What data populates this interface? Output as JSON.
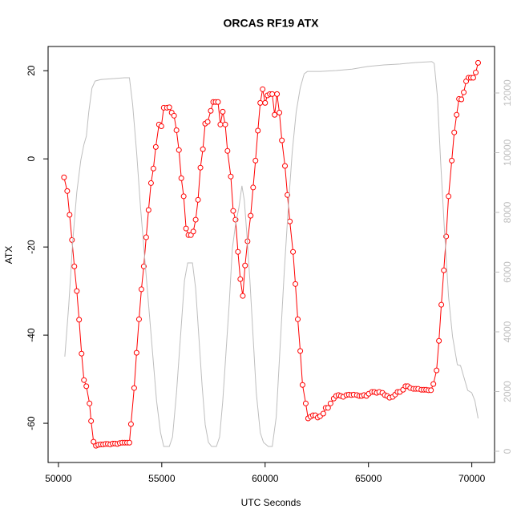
{
  "chart_data": {
    "type": "line",
    "title": "ORCAS RF19 ATX",
    "xlabel": "UTC Seconds",
    "ylabel": "ATX",
    "xlim": [
      49500,
      71100
    ],
    "ylim": [
      -68.9,
      25.5
    ],
    "y2lim": [
      -376,
      13557
    ],
    "xticks": [
      50000,
      55000,
      60000,
      65000,
      70000
    ],
    "yticks": [
      -60,
      -40,
      -20,
      0,
      20
    ],
    "y2ticks": [
      0,
      2000,
      4000,
      6000,
      8000,
      10000,
      12000
    ],
    "y2_color": "#bebebe",
    "series": [
      {
        "color": "#ff0000",
        "markers": true,
        "x": [
          50270,
          50425,
          50540,
          50655,
          50770,
          50890,
          51000,
          51120,
          51235,
          51350,
          51505,
          51580,
          51700,
          51815,
          51930,
          52045,
          52160,
          52275,
          52390,
          52510,
          52625,
          52740,
          52855,
          52970,
          53090,
          53205,
          53320,
          53435,
          53510,
          53665,
          53780,
          53900,
          54015,
          54130,
          54245,
          54360,
          54480,
          54595,
          54710,
          54865,
          54980,
          55095,
          55250,
          55365,
          55480,
          55595,
          55710,
          55830,
          55945,
          56060,
          56175,
          56290,
          56410,
          56525,
          56640,
          56755,
          56870,
          56990,
          57100,
          57220,
          57370,
          57490,
          57605,
          57720,
          57835,
          57950,
          58070,
          58180,
          58340,
          58455,
          58570,
          58685,
          58800,
          58920,
          59030,
          59150,
          59300,
          59420,
          59535,
          59650,
          59765,
          59880,
          60000,
          60115,
          60230,
          60345,
          60460,
          60575,
          60690,
          60810,
          60960,
          61080,
          61195,
          61350,
          61465,
          61580,
          61700,
          61810,
          61965,
          62080,
          62200,
          62315,
          62430,
          62545,
          62660,
          62815,
          62930,
          63045,
          63165,
          63320,
          63435,
          63550,
          63665,
          63780,
          63935,
          64050,
          64170,
          64285,
          64440,
          64555,
          64670,
          64785,
          64900,
          65015,
          65170,
          65285,
          65400,
          65520,
          65675,
          65790,
          65905,
          66020,
          66175,
          66290,
          66405,
          66520,
          66675,
          66790,
          66905,
          67020,
          67175,
          67290,
          67405,
          67560,
          67675,
          67790,
          67905,
          68025,
          68140,
          68295,
          68410,
          68525,
          68645,
          68760,
          68875,
          69030,
          69150,
          69265,
          69380,
          69495,
          69610,
          69725,
          69840,
          69955,
          70070,
          70190,
          70305
        ],
        "values": [
          -4.2,
          -7.3,
          -12.7,
          -18.4,
          -24.4,
          -30,
          -36.5,
          -44.2,
          -50.2,
          -51.6,
          -55.5,
          -59.5,
          -64.2,
          -65.1,
          -64.9,
          -64.8,
          -64.8,
          -64.7,
          -64.7,
          -64.8,
          -64.6,
          -64.6,
          -64.7,
          -64.5,
          -64.4,
          -64.4,
          -64.4,
          -64.4,
          -60.2,
          -52,
          -44,
          -36.4,
          -29.6,
          -24.4,
          -17.8,
          -11.6,
          -5.5,
          -2.2,
          2.7,
          7.8,
          7.4,
          11.6,
          11.6,
          11.7,
          10.5,
          9.8,
          6.5,
          2,
          -4.4,
          -8.5,
          -15.8,
          -17.3,
          -17.3,
          -16.5,
          -13.8,
          -9.3,
          -2,
          2.2,
          8,
          8.4,
          10.9,
          12.9,
          12.9,
          12.9,
          7.8,
          10.7,
          7.8,
          1.8,
          -4,
          -11.8,
          -13.8,
          -21.1,
          -27.3,
          -31.1,
          -24.2,
          -18.7,
          -12.9,
          -6.5,
          -0.4,
          6.4,
          12.7,
          15.8,
          12.7,
          14.4,
          14.7,
          14.7,
          10,
          14.7,
          10.5,
          4.2,
          -1.6,
          -8.2,
          -14.2,
          -21.1,
          -28.4,
          -36.4,
          -43.6,
          -51.3,
          -55.5,
          -58.9,
          -58.5,
          -58.2,
          -58.2,
          -58.7,
          -58.4,
          -57.8,
          -56.5,
          -56.5,
          -55.5,
          -54.4,
          -53.8,
          -53.6,
          -53.8,
          -54,
          -53.6,
          -53.5,
          -53.6,
          -53.5,
          -53.6,
          -53.8,
          -53.8,
          -53.6,
          -53.8,
          -53.3,
          -52.9,
          -52.9,
          -53.1,
          -52.9,
          -53.1,
          -53.6,
          -53.8,
          -54.2,
          -54,
          -53.5,
          -52.9,
          -52.9,
          -52.4,
          -51.6,
          -51.6,
          -52,
          -52.2,
          -52.2,
          -52.2,
          -52.4,
          -52.4,
          -52.4,
          -52.5,
          -52.5,
          -51.1,
          -48,
          -41.3,
          -33.1,
          -25.3,
          -17.6,
          -8.5,
          -0.4,
          6,
          10,
          13.6,
          13.5,
          15.1,
          17.6,
          18.4,
          18.4,
          18.4,
          19.6,
          21.8
        ]
      },
      {
        "color": "#bebebe",
        "axis": "y2",
        "markers": false,
        "x": [
          50309,
          50502,
          50695,
          50888,
          51081,
          51235,
          51351,
          51467,
          51621,
          51776,
          52046,
          52625,
          53204,
          53435,
          53590,
          53783,
          53976,
          54169,
          54362,
          54555,
          54748,
          54941,
          55095,
          55365,
          55520,
          55713,
          55906,
          56099,
          56253,
          56485,
          56639,
          56794,
          56948,
          57102,
          57257,
          57411,
          57643,
          57797,
          57952,
          58106,
          58260,
          58415,
          58569,
          58724,
          58878,
          58994,
          59110,
          59264,
          59418,
          59573,
          59766,
          59920,
          60152,
          60345,
          60538,
          60731,
          60924,
          61117,
          61310,
          61503,
          61696,
          61889,
          62043,
          62661,
          63433,
          64205,
          64977,
          65749,
          66521,
          67293,
          68065,
          68181,
          68335,
          68489,
          68682,
          68875,
          69068,
          69300,
          69454,
          69609,
          69802,
          69995,
          70149,
          70304
        ],
        "values": [
          3170,
          4910,
          7060,
          8670,
          9740,
          10280,
          10550,
          11360,
          12160,
          12400,
          12450,
          12480,
          12510,
          12510,
          11620,
          10010,
          8130,
          6520,
          4910,
          3300,
          1690,
          620,
          160,
          160,
          480,
          1960,
          3840,
          5720,
          6310,
          6310,
          5450,
          3840,
          2230,
          890,
          300,
          160,
          160,
          480,
          1690,
          3300,
          4910,
          6790,
          7600,
          8130,
          8890,
          8400,
          7330,
          5720,
          3840,
          1960,
          620,
          300,
          160,
          160,
          1150,
          3570,
          5990,
          8130,
          10010,
          11360,
          12160,
          12640,
          12720,
          12720,
          12750,
          12800,
          12890,
          12940,
          12970,
          13020,
          13050,
          12990,
          11890,
          9740,
          7330,
          5180,
          3840,
          2900,
          2870,
          2500,
          2040,
          1960,
          1690,
          1100
        ]
      }
    ]
  }
}
